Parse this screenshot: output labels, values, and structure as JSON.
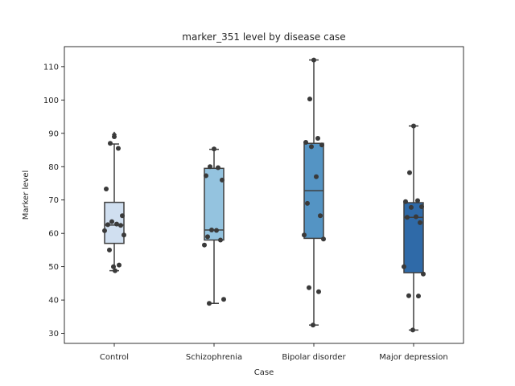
{
  "chart_data": {
    "type": "box",
    "title": "marker_351 level by disease case",
    "xlabel": "Case",
    "ylabel": "Marker level",
    "ylim": [
      27,
      116
    ],
    "yticks": [
      30,
      40,
      50,
      60,
      70,
      80,
      90,
      100,
      110
    ],
    "grid": false,
    "categories": [
      "Control",
      "Schizophrenia",
      "Bipolar disorder",
      "Major depression"
    ],
    "colors": [
      "#d0dff0",
      "#94c3df",
      "#5494c4",
      "#2f6aa8"
    ],
    "boxes": [
      {
        "q1": 57.0,
        "median": 62.5,
        "q3": 69.3,
        "whisker_low": 48.8,
        "whisker_high": 86.8,
        "outliers": [
          89.6
        ]
      },
      {
        "q1": 58.0,
        "median": 61.0,
        "q3": 79.5,
        "whisker_low": 39.0,
        "whisker_high": 85.2,
        "outliers": []
      },
      {
        "q1": 58.5,
        "median": 72.8,
        "q3": 87.0,
        "whisker_low": 32.5,
        "whisker_high": 112.0,
        "outliers": []
      },
      {
        "q1": 48.2,
        "median": 64.8,
        "q3": 69.2,
        "whisker_low": 31.0,
        "whisker_high": 92.2,
        "outliers": []
      }
    ],
    "points": [
      [
        89.0,
        87.0,
        85.5,
        73.3,
        65.3,
        63.5,
        62.8,
        62.6,
        62.4,
        60.8,
        59.5,
        55.0,
        50.5,
        50.0,
        48.8
      ],
      [
        85.3,
        80.0,
        79.7,
        77.3,
        76.0,
        61.0,
        60.9,
        59.0,
        58.0,
        56.5,
        40.2,
        39.0
      ],
      [
        112.0,
        100.3,
        88.5,
        87.3,
        86.5,
        86.0,
        77.0,
        69.0,
        65.3,
        59.5,
        58.3,
        43.7,
        42.5,
        32.5
      ],
      [
        92.2,
        78.2,
        69.8,
        69.5,
        68.0,
        67.8,
        65.0,
        64.8,
        63.2,
        50.0,
        47.8,
        41.3,
        41.2,
        31.0
      ]
    ]
  }
}
